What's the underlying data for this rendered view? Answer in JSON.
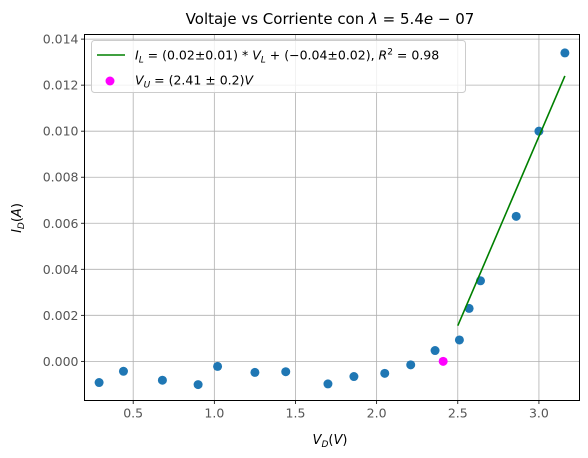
{
  "chart_data": {
    "type": "scatter",
    "title": "Voltaje vs Corriente con λ = 5.4e−07",
    "xlabel": "V_D(V)",
    "ylabel": "I_D(A)",
    "xlim": [
      0.2,
      3.25
    ],
    "ylim": [
      -0.0017,
      0.0142
    ],
    "xticks": [
      0.5,
      1.0,
      1.5,
      2.0,
      2.5,
      3.0
    ],
    "xtick_labels": [
      "0.5",
      "1.0",
      "1.5",
      "2.0",
      "2.5",
      "3.0"
    ],
    "yticks": [
      0.0,
      0.002,
      0.004,
      0.006,
      0.008,
      0.01,
      0.012,
      0.014
    ],
    "ytick_labels": [
      "0.000",
      "0.002",
      "0.004",
      "0.006",
      "0.008",
      "0.010",
      "0.012",
      "0.014"
    ],
    "grid": true,
    "legend_position": "top-left",
    "series": [
      {
        "kind": "scatter",
        "color": "#1f77b4",
        "x": [
          0.29,
          0.44,
          0.68,
          0.9,
          1.02,
          1.25,
          1.44,
          1.7,
          1.86,
          2.05,
          2.21,
          2.36,
          2.51,
          2.57,
          2.64,
          2.86,
          3.0,
          3.16
        ],
        "y": [
          -0.00092,
          -0.00043,
          -0.00082,
          -0.00101,
          -0.00022,
          -0.00048,
          -0.00045,
          -0.00098,
          -0.00066,
          -0.00052,
          -0.00015,
          0.00047,
          0.00093,
          0.0023,
          0.0035,
          0.0063,
          0.01,
          0.0134
        ]
      },
      {
        "kind": "line",
        "name": "I_L = (0.02±0.01)*V_L + (−0.04±0.02), R² = 0.98",
        "color": "#008000",
        "x": [
          2.5,
          3.16
        ],
        "y": [
          0.00155,
          0.0124
        ]
      },
      {
        "kind": "scatter",
        "name": "V_U = (2.41 ± 0.2)V",
        "color": "#ff00ff",
        "x": [
          2.41
        ],
        "y": [
          0.0
        ]
      }
    ]
  }
}
